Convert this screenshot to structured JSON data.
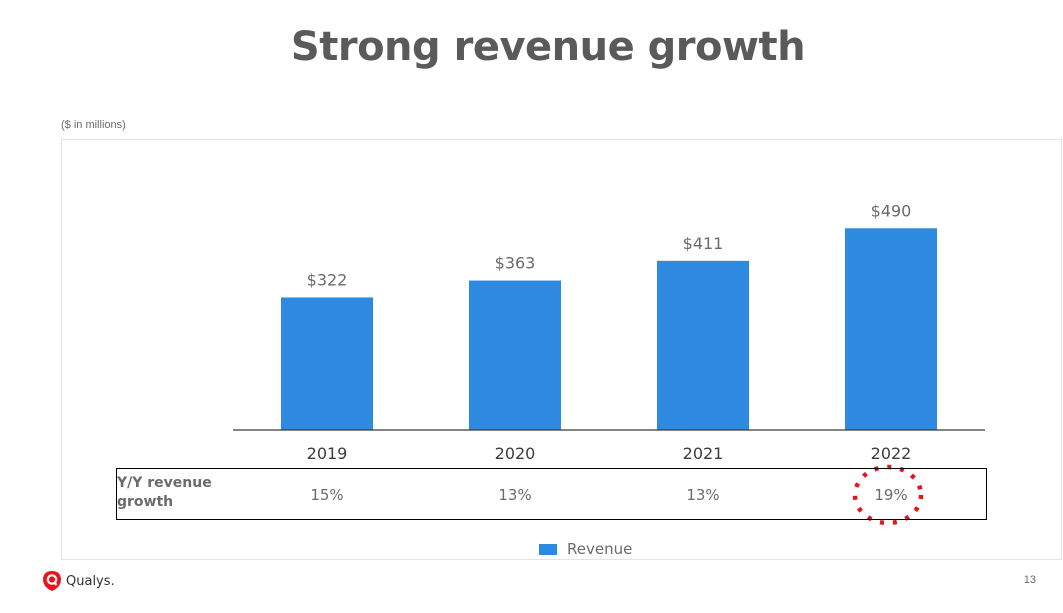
{
  "slide": {
    "title": "Strong revenue growth",
    "units_note": "($ in millions)",
    "yoy_label": "Y/Y revenue growth",
    "brand": "Qualys.",
    "page_number": "13"
  },
  "colors": {
    "bar": "#2e8ae0",
    "highlight": "#e8141c",
    "title": "#5a5a5a"
  },
  "chart_data": {
    "type": "bar",
    "categories": [
      "2019",
      "2020",
      "2021",
      "2022"
    ],
    "series": [
      {
        "name": "Revenue",
        "values": [
          322,
          363,
          411,
          490
        ],
        "data_labels": [
          "$322",
          "$363",
          "$411",
          "$490"
        ]
      }
    ],
    "yoy_growth": [
      "15%",
      "13%",
      "13%",
      "19%"
    ],
    "highlighted_category": "2022",
    "ylim": [
      0,
      600
    ],
    "grid": false,
    "legend_position": "bottom"
  }
}
